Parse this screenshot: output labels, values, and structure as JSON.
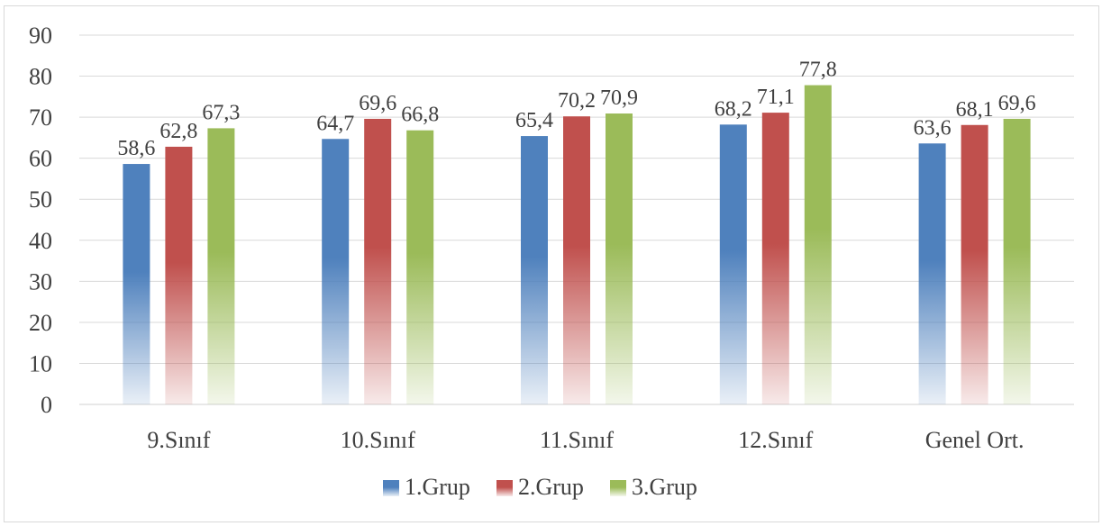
{
  "chart_data": {
    "type": "bar",
    "categories": [
      "9.Sınıf",
      "10.Sınıf",
      "11.Sınıf",
      "12.Sınıf",
      "Genel Ort."
    ],
    "series": [
      {
        "name": "1.Grup",
        "values": [
          58.6,
          64.7,
          65.4,
          68.2,
          63.6
        ],
        "labels": [
          "58,6",
          "64,7",
          "65,4",
          "68,2",
          "63,6"
        ],
        "color": "#4f81bd"
      },
      {
        "name": "2.Grup",
        "values": [
          62.8,
          69.6,
          70.2,
          71.1,
          68.1
        ],
        "labels": [
          "62,8",
          "69,6",
          "70,2",
          "71,1",
          "68,1"
        ],
        "color": "#c0504d"
      },
      {
        "name": "3.Grup",
        "values": [
          67.3,
          66.8,
          70.9,
          77.8,
          69.6
        ],
        "labels": [
          "67,3",
          "66,8",
          "70,9",
          "77,8",
          "69,6"
        ],
        "color": "#9bbb59"
      }
    ],
    "ylim": [
      0,
      90
    ],
    "yticks": [
      0,
      10,
      20,
      30,
      40,
      50,
      60,
      70,
      80,
      90
    ],
    "grid": true,
    "legend": "bottom",
    "title": "",
    "xlabel": "",
    "ylabel": ""
  }
}
